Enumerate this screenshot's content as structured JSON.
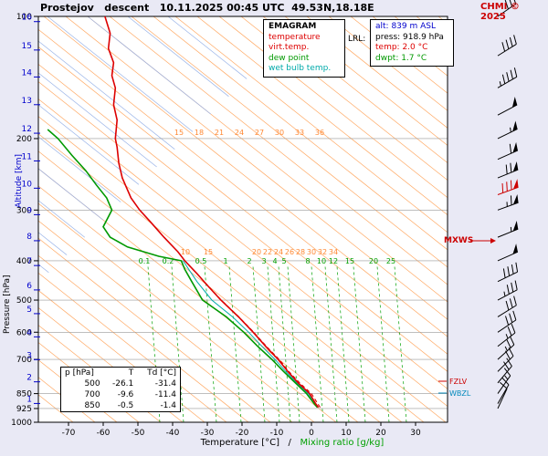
{
  "header": {
    "title": "Prostejov   descent   10.11.2025 00:45 UTC  49.53N,18.18E",
    "copyright": "CHMI © 2025"
  },
  "axes": {
    "y_left_primary": "Pressure [hPa]",
    "y_left_secondary": "Altitude [km]",
    "x_title": "Temperature [°C]",
    "x_title_separator": "/",
    "x_title_secondary": "Mixing ratio [g/kg]",
    "pressure_ticks": [
      "100",
      "200",
      "300",
      "400",
      "500",
      "600",
      "700",
      "850",
      "925",
      "1000"
    ],
    "altitude_ticks": [
      "16",
      "15",
      "14",
      "13",
      "12",
      "11",
      "10",
      "9",
      "8",
      "7",
      "6",
      "5",
      "4",
      "3",
      "2",
      "1"
    ],
    "temperature_ticks": [
      "-70",
      "-60",
      "-50",
      "-40",
      "-30",
      "-20",
      "-10",
      "0",
      "10",
      "20",
      "30"
    ]
  },
  "legend": {
    "title": "EMAGRAM",
    "items": [
      {
        "label": "temperature",
        "color": "#dd0000"
      },
      {
        "label": "virt.temp.",
        "color": "#dd0000"
      },
      {
        "label": "dew point",
        "color": "#009900"
      },
      {
        "label": "wet bulb temp.",
        "color": "#00aaaa"
      }
    ]
  },
  "station_info": {
    "lrl_label": "LRL:",
    "alt": "alt: 839 m ASL",
    "press": "press: 918.9 hPa",
    "temp": "temp: 2.0 °C",
    "dwpt": "dwpt: 1.7 °C"
  },
  "readings_table": {
    "columns": [
      "p [hPa]",
      "T",
      "Td [°C]"
    ],
    "rows": [
      [
        "500",
        "-26.1",
        "-31.4"
      ],
      [
        "700",
        "-9.6",
        "-11.4"
      ],
      [
        "850",
        "-0.5",
        "-1.4"
      ]
    ]
  },
  "annotations": {
    "max_wind": "MXWS",
    "freezing_level": "FZLV",
    "wet_bulb_zero": "WBZL"
  },
  "chart_data": {
    "type": "line",
    "title": "Emagram sounding, Prostejov descent 10.11.2025 00:45 UTC 49.53N,18.18E",
    "x_axis": {
      "label": "Temperature [°C]",
      "min": -70,
      "max": 30,
      "ticks": [
        -70,
        -60,
        -50,
        -40,
        -30,
        -20,
        -10,
        0,
        10,
        20,
        30
      ]
    },
    "y_axis": {
      "label": "Pressure [hPa]",
      "scale": "log",
      "min": 100,
      "max": 1000,
      "ticks": [
        100,
        200,
        300,
        400,
        500,
        600,
        700,
        850,
        925,
        1000
      ]
    },
    "adiabat_labels_upper": [
      "15",
      "18",
      "21",
      "24",
      "27",
      "30",
      "33",
      "36"
    ],
    "adiabat_labels_lower": [
      "10",
      "15",
      "20",
      "22",
      "24",
      "26",
      "28",
      "30",
      "32",
      "34"
    ],
    "mixing_ratio_labels": [
      "0.1",
      "0.2",
      "0.5",
      "1",
      "2",
      "3",
      "4",
      "5",
      "8",
      "10",
      "12",
      "15",
      "20",
      "25"
    ],
    "surface": {
      "pressure_hPa": 918.9,
      "temp_c": 2.0,
      "dewpoint_c": 1.7,
      "altitude_m": 839
    },
    "series": [
      {
        "name": "temperature",
        "color": "#dd0000",
        "style": "solid",
        "points": [
          [
            918.9,
            2.0
          ],
          [
            900,
            1.2
          ],
          [
            850,
            -0.5
          ],
          [
            800,
            -3.8
          ],
          [
            750,
            -6.8
          ],
          [
            700,
            -9.6
          ],
          [
            650,
            -13.2
          ],
          [
            600,
            -16.8
          ],
          [
            550,
            -21.0
          ],
          [
            500,
            -26.1
          ],
          [
            460,
            -30.0
          ],
          [
            430,
            -33.0
          ],
          [
            400,
            -36.5
          ],
          [
            380,
            -38.5
          ],
          [
            350,
            -42.5
          ],
          [
            320,
            -46.5
          ],
          [
            300,
            -49.5
          ],
          [
            280,
            -52.0
          ],
          [
            250,
            -54.5
          ],
          [
            230,
            -55.5
          ],
          [
            210,
            -56.0
          ],
          [
            200,
            -56.5
          ],
          [
            180,
            -56.0
          ],
          [
            165,
            -57.0
          ],
          [
            150,
            -56.5
          ],
          [
            140,
            -57.5
          ],
          [
            130,
            -57.0
          ],
          [
            120,
            -58.5
          ],
          [
            110,
            -58.0
          ],
          [
            100,
            -59.5
          ]
        ]
      },
      {
        "name": "virtual_temperature",
        "color": "#dd0000",
        "style": "dashed",
        "points": [
          [
            918.9,
            2.5
          ],
          [
            850,
            0.0
          ],
          [
            800,
            -3.4
          ],
          [
            750,
            -6.5
          ],
          [
            700,
            -9.3
          ],
          [
            650,
            -13.0
          ],
          [
            600,
            -16.6
          ],
          [
            550,
            -20.9
          ],
          [
            500,
            -26.0
          ],
          [
            460,
            -29.9
          ],
          [
            400,
            -36.5
          ]
        ]
      },
      {
        "name": "dew_point",
        "color": "#009900",
        "style": "solid",
        "points": [
          [
            918.9,
            1.7
          ],
          [
            900,
            0.8
          ],
          [
            850,
            -1.4
          ],
          [
            800,
            -4.6
          ],
          [
            750,
            -8.0
          ],
          [
            700,
            -11.4
          ],
          [
            650,
            -15.5
          ],
          [
            600,
            -19.5
          ],
          [
            550,
            -24.5
          ],
          [
            500,
            -31.4
          ],
          [
            450,
            -34.5
          ],
          [
            420,
            -36.5
          ],
          [
            400,
            -37.5
          ],
          [
            390,
            -44.0
          ],
          [
            370,
            -53.0
          ],
          [
            350,
            -58.0
          ],
          [
            330,
            -60.0
          ],
          [
            300,
            -57.5
          ],
          [
            280,
            -59.0
          ],
          [
            260,
            -62.0
          ],
          [
            240,
            -65.0
          ],
          [
            220,
            -69.0
          ],
          [
            200,
            -73.0
          ],
          [
            190,
            -76.0
          ]
        ]
      },
      {
        "name": "wet_bulb",
        "color": "#00aaaa",
        "style": "solid",
        "points": [
          [
            918.9,
            1.85
          ],
          [
            850,
            -0.9
          ],
          [
            800,
            -4.2
          ],
          [
            750,
            -7.4
          ],
          [
            700,
            -10.5
          ],
          [
            650,
            -14.3
          ],
          [
            600,
            -18.1
          ],
          [
            550,
            -22.7
          ],
          [
            500,
            -28.7
          ],
          [
            450,
            -33.0
          ],
          [
            400,
            -37.0
          ]
        ]
      }
    ],
    "wind_barbs": [
      {
        "p": 925,
        "speed_kt": 8,
        "dir_deg": 205
      },
      {
        "p": 900,
        "speed_kt": 12,
        "dir_deg": 210
      },
      {
        "p": 850,
        "speed_kt": 15,
        "dir_deg": 215
      },
      {
        "p": 800,
        "speed_kt": 18,
        "dir_deg": 220
      },
      {
        "p": 750,
        "speed_kt": 20,
        "dir_deg": 225
      },
      {
        "p": 700,
        "speed_kt": 25,
        "dir_deg": 228
      },
      {
        "p": 650,
        "speed_kt": 25,
        "dir_deg": 232
      },
      {
        "p": 600,
        "speed_kt": 28,
        "dir_deg": 236
      },
      {
        "p": 550,
        "speed_kt": 32,
        "dir_deg": 238
      },
      {
        "p": 500,
        "speed_kt": 35,
        "dir_deg": 242
      },
      {
        "p": 450,
        "speed_kt": 42,
        "dir_deg": 244
      },
      {
        "p": 400,
        "speed_kt": 48,
        "dir_deg": 246
      },
      {
        "p": 350,
        "speed_kt": 55,
        "dir_deg": 248
      },
      {
        "p": 300,
        "speed_kt": 65,
        "dir_deg": 250
      },
      {
        "p": 275,
        "speed_kt": 78,
        "dir_deg": 250,
        "highlight": true
      },
      {
        "p": 250,
        "speed_kt": 72,
        "dir_deg": 248
      },
      {
        "p": 225,
        "speed_kt": 62,
        "dir_deg": 246
      },
      {
        "p": 200,
        "speed_kt": 55,
        "dir_deg": 244
      },
      {
        "p": 175,
        "speed_kt": 48,
        "dir_deg": 242
      },
      {
        "p": 150,
        "speed_kt": 45,
        "dir_deg": 240
      },
      {
        "p": 125,
        "speed_kt": 38,
        "dir_deg": 238
      },
      {
        "p": 100,
        "speed_kt": 32,
        "dir_deg": 235
      }
    ]
  }
}
